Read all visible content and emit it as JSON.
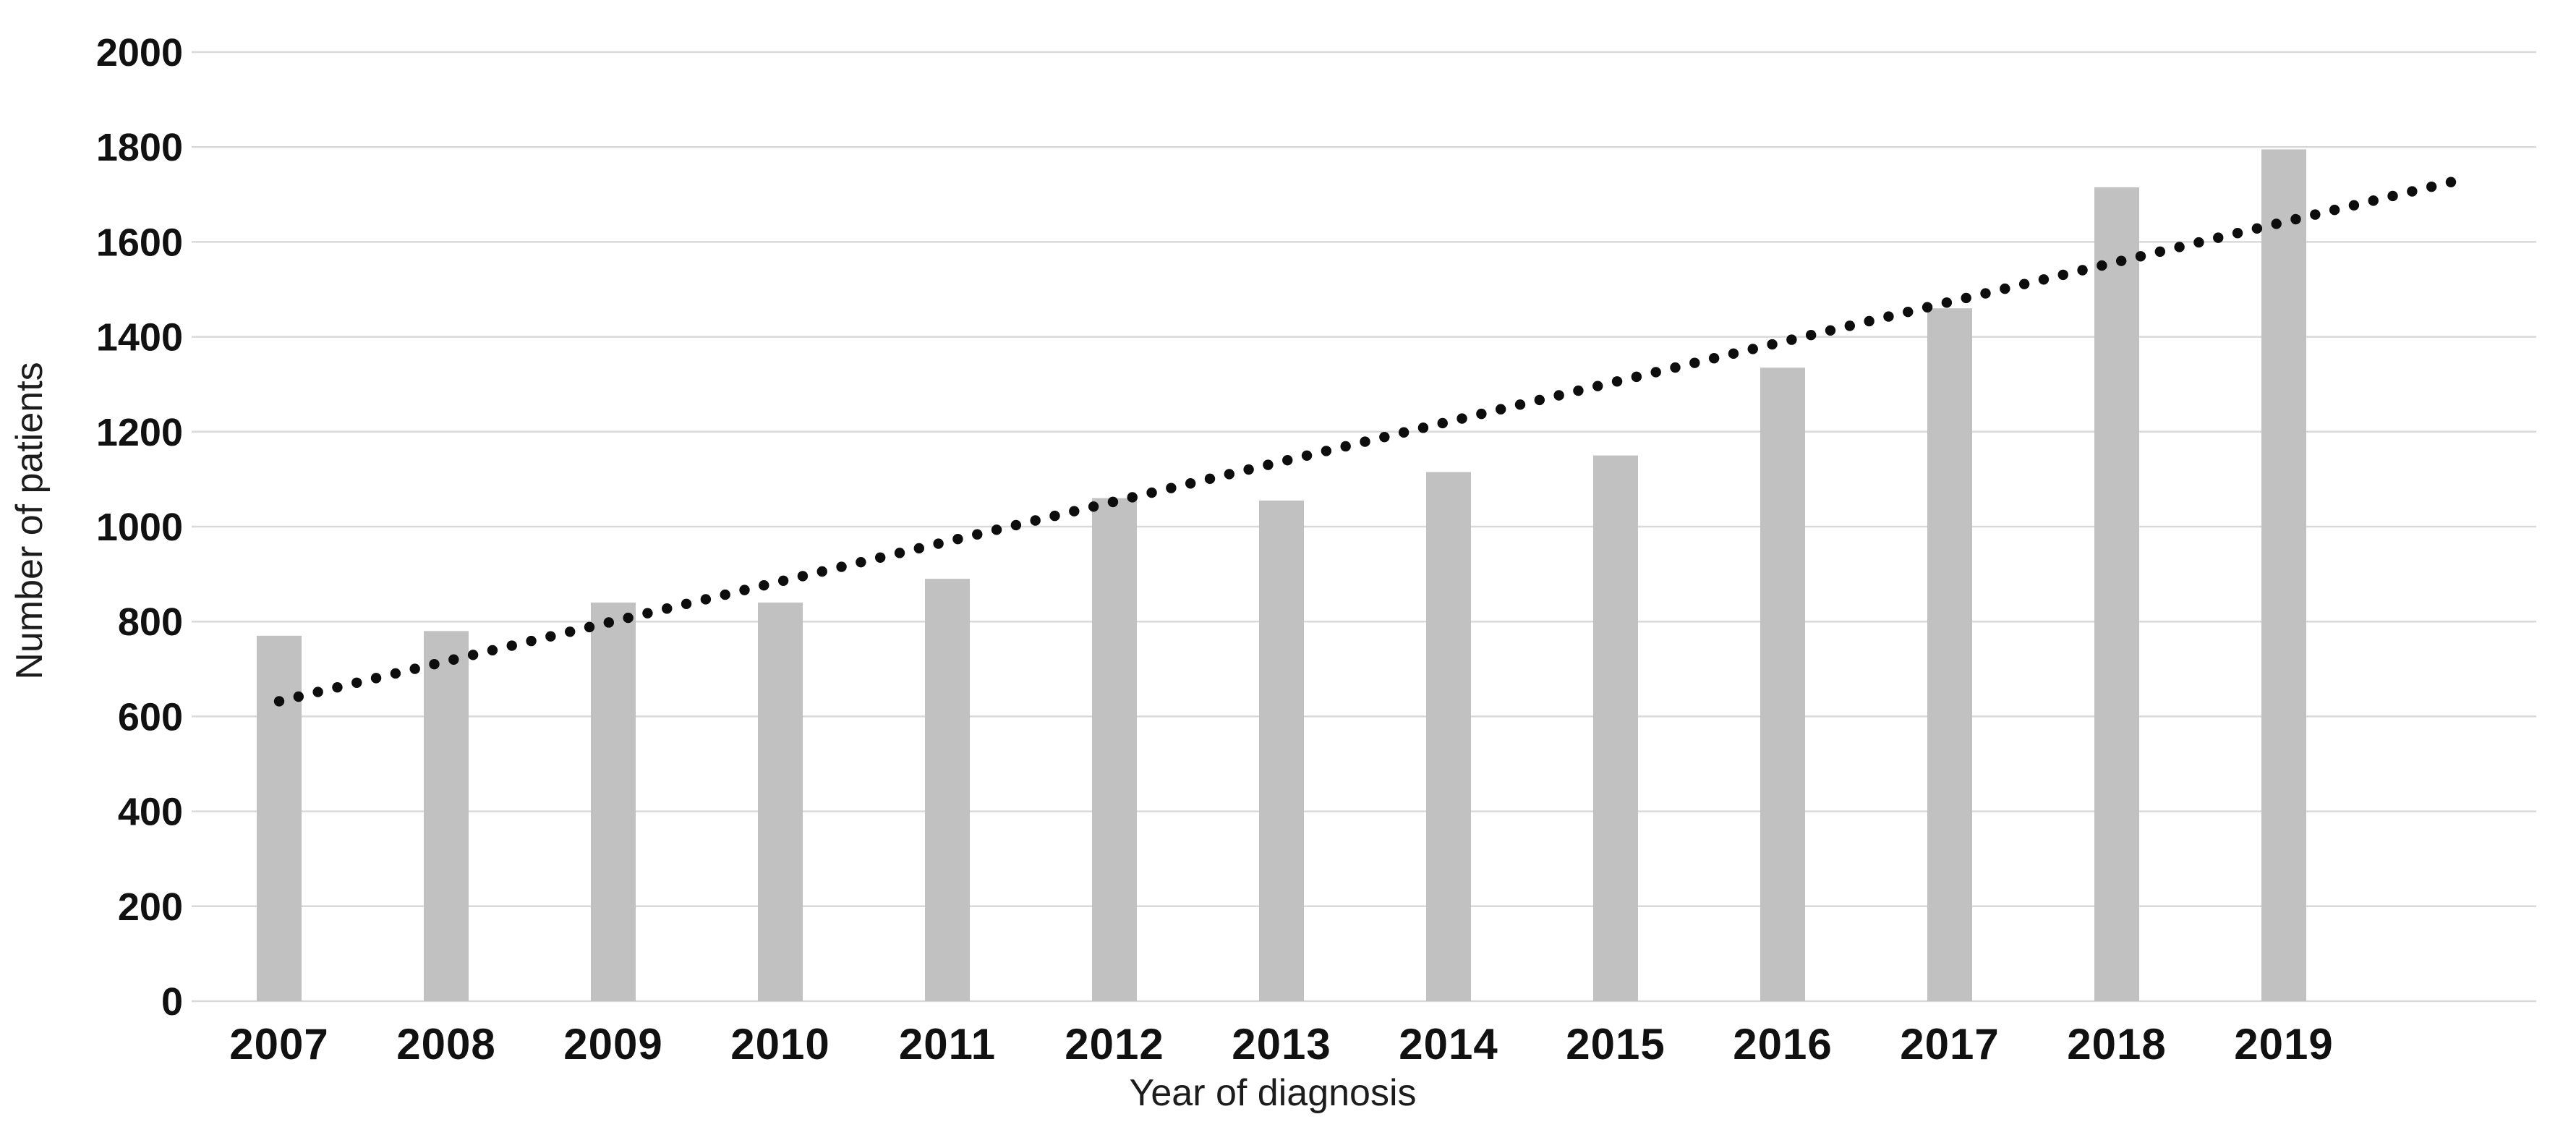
{
  "chart_data": {
    "type": "bar",
    "title": "",
    "categories": [
      "2007",
      "2008",
      "2009",
      "2010",
      "2011",
      "2012",
      "2013",
      "2014",
      "2015",
      "2016",
      "2017",
      "2018",
      "2019"
    ],
    "values": [
      770,
      780,
      840,
      840,
      890,
      1060,
      1055,
      1115,
      1150,
      1335,
      1460,
      1715,
      1795
    ],
    "xlabel": "Year of diagnosis",
    "ylabel": "Number of patients",
    "ylim": [
      0,
      2000
    ],
    "ytick_step": 200,
    "yticks": [
      0,
      200,
      400,
      600,
      800,
      1000,
      1200,
      1400,
      1600,
      1800,
      2000
    ],
    "grid": "horizontal",
    "legend": "none",
    "background": "#ffffff",
    "bar_color": "#c1c1c1",
    "grid_color": "#d9d9d9",
    "text_color": "#111111",
    "trendline": {
      "type": "linear-dotted",
      "color": "#0d0d0d",
      "start": {
        "x_year": 2007,
        "value": 632
      },
      "end": {
        "x_year": 2020,
        "value": 1726
      }
    }
  }
}
